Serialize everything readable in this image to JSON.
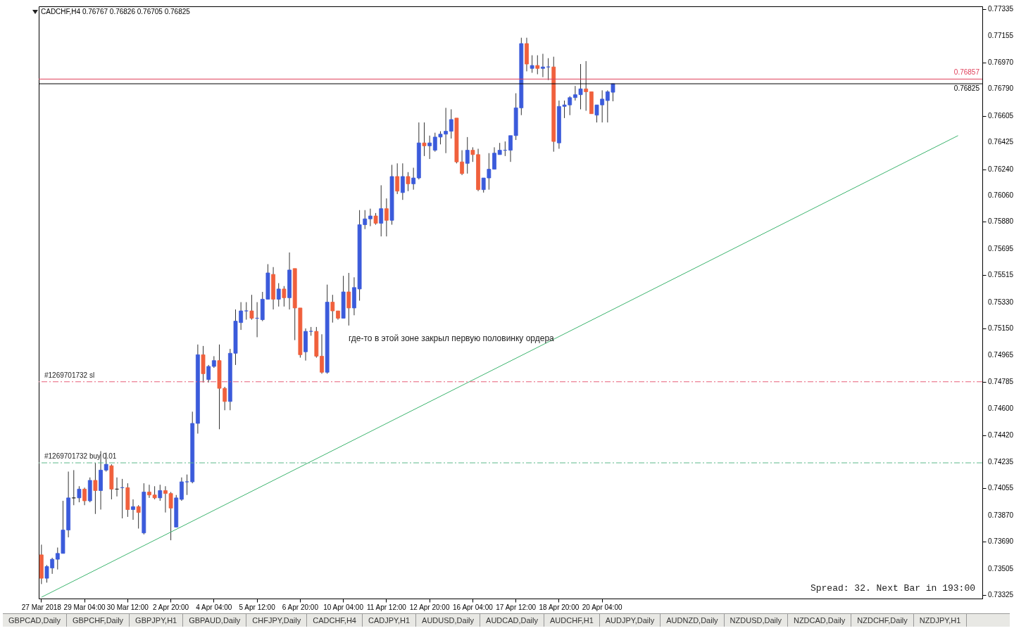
{
  "chart_data": {
    "type": "candlestick",
    "title": "CADCHF,H4  0.76767 0.76826 0.76705 0.76825",
    "categories": [
      "27 Mar 2018",
      null,
      null,
      null,
      null,
      null,
      null,
      null,
      "29 Mar 04:00",
      null,
      null,
      null,
      null,
      null,
      null,
      null,
      "30 Mar 12:00",
      null,
      null,
      null,
      null,
      null,
      null,
      null,
      "2 Apr 20:00",
      null,
      null,
      null,
      null,
      null,
      null,
      null,
      "4 Apr 04:00",
      null,
      null,
      null,
      null,
      null,
      null,
      null,
      "5 Apr 12:00",
      null,
      null,
      null,
      null,
      null,
      null,
      null,
      "6 Apr 20:00",
      null,
      null,
      null,
      null,
      null,
      null,
      null,
      "10 Apr 04:00",
      null,
      null,
      null,
      null,
      null,
      null,
      null,
      "11 Apr 12:00",
      null,
      null,
      null,
      null,
      null,
      null,
      null,
      "12 Apr 20:00",
      null,
      null,
      null,
      null,
      null,
      null,
      null,
      "16 Apr 04:00",
      null,
      null,
      null,
      null,
      null,
      null,
      null,
      "17 Apr 12:00",
      null,
      null,
      null,
      null,
      null,
      null,
      null,
      "18 Apr 20:00",
      null,
      null,
      null,
      null,
      null,
      null,
      null,
      "20 Apr 04:00",
      null,
      null,
      null,
      null,
      null,
      null,
      null,
      null,
      null,
      null,
      null,
      null,
      null,
      null,
      null,
      null,
      null,
      null,
      null,
      null,
      null,
      null,
      null,
      null,
      null,
      null,
      null,
      null,
      null,
      null,
      null,
      null,
      null,
      null,
      null,
      null,
      null,
      null,
      null,
      null,
      null,
      null,
      null,
      null,
      null,
      null,
      null,
      null,
      null,
      null,
      null,
      null,
      null,
      null,
      null,
      null,
      null,
      null,
      null,
      null,
      null,
      null,
      null,
      null,
      null,
      null,
      null,
      null,
      null,
      null
    ],
    "ohlc": [
      [
        0.736,
        0.7367,
        0.734,
        0.7344
      ],
      [
        0.7344,
        0.7353,
        0.7341,
        0.7352
      ],
      [
        0.7351,
        0.7358,
        0.7347,
        0.7357
      ],
      [
        0.7357,
        0.7365,
        0.735,
        0.7361
      ],
      [
        0.7361,
        0.7397,
        0.7361,
        0.7377
      ],
      [
        0.7377,
        0.7417,
        0.7372,
        0.7399
      ],
      [
        0.7399,
        0.7418,
        0.7394,
        0.7399
      ],
      [
        0.7399,
        0.7407,
        0.7396,
        0.7405
      ],
      [
        0.7405,
        0.7406,
        0.7394,
        0.7397
      ],
      [
        0.7397,
        0.7413,
        0.7396,
        0.7411
      ],
      [
        0.7411,
        0.7423,
        0.7388,
        0.7404
      ],
      [
        0.7404,
        0.7431,
        0.7391,
        0.7418
      ],
      [
        0.7418,
        0.743,
        0.7417,
        0.7422
      ],
      [
        0.7421,
        0.7422,
        0.7398,
        0.7405
      ],
      [
        0.7405,
        0.7413,
        0.74,
        0.7405
      ],
      [
        0.7406,
        0.7412,
        0.7385,
        0.7406
      ],
      [
        0.7406,
        0.7409,
        0.7386,
        0.7391
      ],
      [
        0.7391,
        0.7398,
        0.7384,
        0.7393
      ],
      [
        0.7393,
        0.7394,
        0.7378,
        0.7389
      ],
      [
        0.7375,
        0.7409,
        0.7374,
        0.7403
      ],
      [
        0.7403,
        0.7408,
        0.7399,
        0.7401
      ],
      [
        0.7401,
        0.7407,
        0.7398,
        0.7399
      ],
      [
        0.7399,
        0.7408,
        0.7397,
        0.7404
      ],
      [
        0.7404,
        0.7407,
        0.7389,
        0.7402
      ],
      [
        0.7402,
        0.7403,
        0.737,
        0.7392
      ],
      [
        0.7379,
        0.7401,
        0.7379,
        0.7399
      ],
      [
        0.7398,
        0.7413,
        0.7397,
        0.741
      ],
      [
        0.741,
        0.7415,
        0.7401,
        0.741
      ],
      [
        0.741,
        0.7458,
        0.7409,
        0.745
      ],
      [
        0.745,
        0.7504,
        0.7443,
        0.7497
      ],
      [
        0.7497,
        0.7503,
        0.7478,
        0.7484
      ],
      [
        0.748,
        0.749,
        0.7478,
        0.7489
      ],
      [
        0.7489,
        0.7496,
        0.7488,
        0.7493
      ],
      [
        0.7493,
        0.7504,
        0.7446,
        0.7474
      ],
      [
        0.7474,
        0.7475,
        0.7459,
        0.7465
      ],
      [
        0.7465,
        0.7501,
        0.7459,
        0.7498
      ],
      [
        0.7498,
        0.7528,
        0.749,
        0.752
      ],
      [
        0.7519,
        0.7533,
        0.7514,
        0.7527
      ],
      [
        0.7527,
        0.7533,
        0.7521,
        0.7527
      ],
      [
        0.7527,
        0.7538,
        0.7521,
        0.7522
      ],
      [
        0.7522,
        0.7533,
        0.7509,
        0.7522
      ],
      [
        0.7521,
        0.754,
        0.752,
        0.7535
      ],
      [
        0.7535,
        0.7559,
        0.7535,
        0.7553
      ],
      [
        0.7552,
        0.7557,
        0.7528,
        0.7535
      ],
      [
        0.7535,
        0.7546,
        0.753,
        0.7542
      ],
      [
        0.7542,
        0.7544,
        0.753,
        0.7536
      ],
      [
        0.7536,
        0.7567,
        0.7528,
        0.7555
      ],
      [
        0.7556,
        0.7556,
        0.7507,
        0.7529
      ],
      [
        0.7529,
        0.7529,
        0.7495,
        0.7497
      ],
      [
        0.7499,
        0.7515,
        0.7493,
        0.7513
      ],
      [
        0.7513,
        0.7516,
        0.751,
        0.7513
      ],
      [
        0.7513,
        0.7516,
        0.7495,
        0.7496
      ],
      [
        0.7496,
        0.7511,
        0.7484,
        0.7485
      ],
      [
        0.7485,
        0.7545,
        0.7484,
        0.7533
      ],
      [
        0.7533,
        0.7538,
        0.7519,
        0.7527
      ],
      [
        0.7527,
        0.7527,
        0.7521,
        0.7522
      ],
      [
        0.7522,
        0.7551,
        0.7522,
        0.754
      ],
      [
        0.754,
        0.7553,
        0.7517,
        0.7529
      ],
      [
        0.7529,
        0.755,
        0.7524,
        0.7543
      ],
      [
        0.7542,
        0.7596,
        0.7534,
        0.7586
      ],
      [
        0.7586,
        0.7596,
        0.7583,
        0.759
      ],
      [
        0.759,
        0.7597,
        0.7585,
        0.7592
      ],
      [
        0.7592,
        0.7594,
        0.7586,
        0.7587
      ],
      [
        0.7587,
        0.7613,
        0.7578,
        0.7597
      ],
      [
        0.7597,
        0.7604,
        0.7578,
        0.7589
      ],
      [
        0.7589,
        0.7627,
        0.7586,
        0.7619
      ],
      [
        0.7619,
        0.7628,
        0.7607,
        0.7609
      ],
      [
        0.7608,
        0.7628,
        0.7603,
        0.7619
      ],
      [
        0.7619,
        0.7622,
        0.7609,
        0.7614
      ],
      [
        0.7614,
        0.7625,
        0.761,
        0.7618
      ],
      [
        0.7618,
        0.7656,
        0.7617,
        0.7642
      ],
      [
        0.7642,
        0.7656,
        0.7633,
        0.764
      ],
      [
        0.764,
        0.7647,
        0.7631,
        0.7642
      ],
      [
        0.7637,
        0.7649,
        0.7636,
        0.7646
      ],
      [
        0.7646,
        0.765,
        0.7641,
        0.7648
      ],
      [
        0.7648,
        0.7666,
        0.7635,
        0.765
      ],
      [
        0.765,
        0.7665,
        0.7645,
        0.7658
      ],
      [
        0.7659,
        0.7659,
        0.7628,
        0.7629
      ],
      [
        0.7629,
        0.7637,
        0.762,
        0.7621
      ],
      [
        0.7628,
        0.7646,
        0.7621,
        0.7637
      ],
      [
        0.7637,
        0.7639,
        0.7629,
        0.7634
      ],
      [
        0.7634,
        0.7638,
        0.7609,
        0.761
      ],
      [
        0.761,
        0.7618,
        0.7608,
        0.7618
      ],
      [
        0.7618,
        0.7635,
        0.761,
        0.7624
      ],
      [
        0.7624,
        0.7639,
        0.7624,
        0.7635
      ],
      [
        0.7634,
        0.7642,
        0.7634,
        0.7637
      ],
      [
        0.7637,
        0.7643,
        0.7633,
        0.7637
      ],
      [
        0.7637,
        0.7647,
        0.7629,
        0.7647
      ],
      [
        0.7647,
        0.7676,
        0.7644,
        0.7666
      ],
      [
        0.7666,
        0.7714,
        0.7661,
        0.771
      ],
      [
        0.771,
        0.7714,
        0.7691,
        0.7696
      ],
      [
        0.7693,
        0.7702,
        0.769,
        0.7695
      ],
      [
        0.7695,
        0.7702,
        0.7689,
        0.7693
      ],
      [
        0.7693,
        0.7703,
        0.7687,
        0.7694
      ],
      [
        0.7694,
        0.77,
        0.7685,
        0.7694
      ],
      [
        0.7694,
        0.7701,
        0.7636,
        0.7643
      ],
      [
        0.7642,
        0.7671,
        0.7638,
        0.7667
      ],
      [
        0.7667,
        0.7671,
        0.7659,
        0.7668
      ],
      [
        0.7668,
        0.7674,
        0.7661,
        0.7673
      ],
      [
        0.7673,
        0.7681,
        0.7671,
        0.7675
      ],
      [
        0.7675,
        0.7696,
        0.7665,
        0.7679
      ],
      [
        0.7679,
        0.7698,
        0.7664,
        0.7677
      ],
      [
        0.7677,
        0.7677,
        0.7662,
        0.7662
      ],
      [
        0.7661,
        0.7668,
        0.7656,
        0.7668
      ],
      [
        0.7668,
        0.7678,
        0.7656,
        0.7672
      ],
      [
        0.7671,
        0.7678,
        0.7656,
        0.7677
      ],
      [
        0.76767,
        0.76826,
        0.76705,
        0.76825
      ],
      null,
      null,
      null,
      null,
      null,
      null,
      null,
      null,
      null,
      null,
      null,
      null,
      null,
      null,
      null,
      null,
      null,
      null,
      null,
      null,
      null,
      null,
      null,
      null,
      null,
      null,
      null,
      null,
      null,
      null,
      null,
      null,
      null,
      null,
      null,
      null,
      null,
      null,
      null,
      null,
      null,
      null,
      null,
      null,
      null,
      null,
      null,
      null,
      null,
      null,
      null,
      null,
      null,
      null,
      null,
      null,
      null,
      null,
      null,
      null,
      null,
      null,
      null,
      null,
      null,
      null,
      null,
      null
    ],
    "colors": [
      "#f0603c",
      "#3b5bdb",
      "#3b5bdb",
      "#3b5bdb",
      "#3b5bdb",
      "#3b5bdb",
      "#222222",
      "#3b5bdb",
      "#f0603c",
      "#3b5bdb",
      "#f0603c",
      "#3b5bdb",
      "#3b5bdb",
      "#f0603c",
      "#222222",
      "#3b5bdb",
      "#f0603c",
      "#3b5bdb",
      "#f0603c",
      "#3b5bdb",
      "#f0603c",
      "#f0603c",
      "#3b5bdb",
      "#f0603c",
      "#f0603c",
      "#3b5bdb",
      "#3b5bdb",
      "#3b5bdb",
      "#3b5bdb",
      "#3b5bdb",
      "#f0603c",
      "#3b5bdb",
      "#3b5bdb",
      "#f0603c",
      "#f0603c",
      "#3b5bdb",
      "#3b5bdb",
      "#3b5bdb",
      "#3b5bdb",
      "#f0603c",
      "#3b5bdb",
      "#3b5bdb",
      "#3b5bdb",
      "#f0603c",
      "#3b5bdb",
      "#f0603c",
      "#3b5bdb",
      "#f0603c",
      "#f0603c",
      "#3b5bdb",
      "#3b5bdb",
      "#f0603c",
      "#f0603c",
      "#3b5bdb",
      "#f0603c",
      "#f0603c",
      "#3b5bdb",
      "#f0603c",
      "#3b5bdb",
      "#3b5bdb",
      "#3b5bdb",
      "#3b5bdb",
      "#f0603c",
      "#3b5bdb",
      "#f0603c",
      "#3b5bdb",
      "#f0603c",
      "#3b5bdb",
      "#f0603c",
      "#3b5bdb",
      "#3b5bdb",
      "#f0603c",
      "#3b5bdb",
      "#3b5bdb",
      "#3b5bdb",
      "#3b5bdb",
      "#3b5bdb",
      "#f0603c",
      "#f0603c",
      "#3b5bdb",
      "#f0603c",
      "#f0603c",
      "#3b5bdb",
      "#3b5bdb",
      "#3b5bdb",
      "#3b5bdb",
      "#3b5bdb",
      "#3b5bdb",
      "#3b5bdb",
      "#3b5bdb",
      "#f0603c",
      "#3b5bdb",
      "#f0603c",
      "#3b5bdb",
      "#3b5bdb",
      "#f0603c",
      "#3b5bdb",
      "#3b5bdb",
      "#3b5bdb",
      "#3b5bdb",
      "#3b5bdb",
      "#f0603c",
      "#f0603c",
      "#3b5bdb",
      "#3b5bdb",
      "#3b5bdb",
      "#3b5bdb",
      null,
      null,
      null,
      null,
      null,
      null,
      null,
      null,
      null,
      null,
      null,
      null,
      null,
      null,
      null,
      null,
      null,
      null,
      null,
      null,
      null,
      null,
      null,
      null,
      null,
      null,
      null,
      null,
      null,
      null,
      null,
      null,
      null,
      null,
      null,
      null,
      null,
      null,
      null,
      null,
      null,
      null,
      null,
      null,
      null,
      null,
      null,
      null,
      null,
      null,
      null,
      null,
      null,
      null,
      null,
      null,
      null,
      null,
      null,
      null,
      null,
      null,
      null,
      null,
      null,
      null,
      null,
      null
    ],
    "series": [
      {
        "type": "line",
        "color": "#3cb46e",
        "values": [
          0.7331,
          null,
          null,
          null,
          null,
          null,
          null,
          null,
          null,
          null,
          null,
          null,
          null,
          null,
          null,
          null,
          null,
          null,
          null,
          null,
          null,
          null,
          null,
          null,
          null,
          null,
          null,
          null,
          null,
          null,
          null,
          null,
          null,
          null,
          null,
          null,
          null,
          null,
          null,
          null,
          null,
          null,
          null,
          null,
          null,
          null,
          null,
          null,
          null,
          null,
          null,
          null,
          null,
          null,
          null,
          null,
          null,
          null,
          null,
          null,
          null,
          null,
          null,
          null,
          null,
          null,
          null,
          null,
          null,
          null,
          null,
          null,
          null,
          null,
          null,
          null,
          null,
          null,
          null,
          null,
          null,
          null,
          null,
          null,
          null,
          null,
          null,
          null,
          null,
          null,
          null,
          null,
          null,
          null,
          null,
          null,
          null,
          null,
          null,
          null,
          null,
          null,
          null,
          null,
          null,
          null,
          null,
          null,
          null,
          null,
          null,
          null,
          null,
          null,
          null,
          null,
          null,
          null,
          null,
          null,
          null,
          null,
          null,
          null,
          null,
          null,
          null,
          null,
          null,
          null,
          null,
          null,
          null,
          null,
          null,
          null,
          null,
          null,
          null,
          null,
          null,
          null,
          null,
          null,
          null,
          null,
          null,
          null,
          null,
          null,
          null,
          null,
          null,
          null,
          null,
          null,
          null,
          null,
          null,
          null,
          null,
          null,
          null,
          null,
          null,
          null,
          null,
          null,
          null,
          null,
          0.7647,
          null,
          null,
          null,
          null
        ]
      }
    ],
    "ylim": [
      0.73301,
      0.77355
    ],
    "yticks": [
      0.73325,
      0.73505,
      {
        "value": 0.7369,
        "label": "0.73690"
      },
      {
        "value": 0.7387,
        "label": "0.73870"
      },
      0.74055,
      0.74235,
      {
        "value": 0.7442,
        "label": "0.74420"
      },
      {
        "value": 0.746,
        "label": "0.74600"
      },
      0.74785,
      0.74965,
      {
        "value": 0.7515,
        "label": "0.75150"
      },
      {
        "value": 0.7533,
        "label": "0.75330"
      },
      0.75515,
      0.75695,
      {
        "value": 0.7588,
        "label": "0.75880"
      },
      {
        "value": 0.7606,
        "label": "0.76060"
      },
      {
        "value": 0.7624,
        "label": "0.76240"
      },
      0.76425,
      0.76605,
      {
        "value": 0.7679,
        "label": "0.76790"
      },
      {
        "value": 0.7697,
        "label": "0.76970"
      },
      0.77155,
      0.77335
    ],
    "ref_lines": [
      {
        "axis": "y",
        "value": 0.76857,
        "label": "0.76857",
        "color": "#e0405a"
      },
      {
        "axis": "y",
        "value": 0.76825,
        "label": "0.76825",
        "color": "#000000"
      },
      {
        "axis": "y",
        "value": 0.74785,
        "label": "#1269701732 sl",
        "color": "#e8607a",
        "line_style": "dashed"
      },
      {
        "axis": "y",
        "value": 0.7423,
        "label": "#1269701732 buy 0.01",
        "color": "#5cb88a",
        "line_style": "dashed"
      }
    ],
    "annotations": [
      "где-то в этой зоне закрыл первую половинку ордера",
      "Spread: 32. Next Bar in 193:00",
      "GBPCAD,Daily",
      "GBPCHF,Daily",
      "GBPJPY,H1",
      "GBPAUD,Daily",
      "CHFJPY,Daily",
      "CADCHF,H4",
      "CADJPY,H1",
      "AUDUSD,Daily",
      "AUDCAD,Daily",
      "AUDCHF,H1",
      "AUDJPY,Daily",
      "AUDNZD,Daily",
      "NZDUSD,Daily",
      "NZDCAD,Daily",
      "NZDCHF,Daily",
      "NZDJPY,H1"
    ],
    "grid": false
  }
}
